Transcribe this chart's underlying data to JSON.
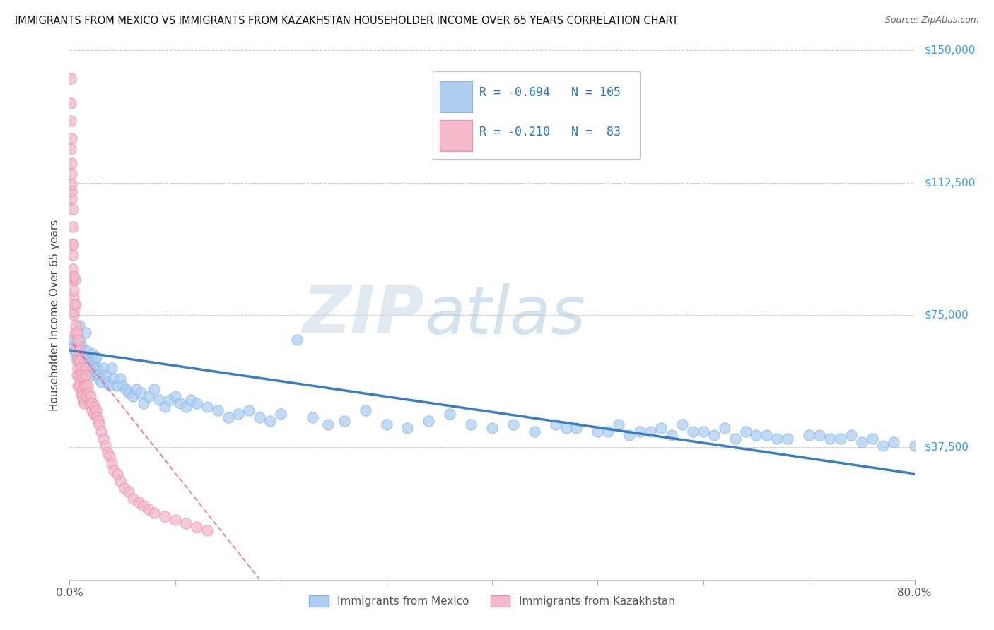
{
  "title": "IMMIGRANTS FROM MEXICO VS IMMIGRANTS FROM KAZAKHSTAN HOUSEHOLDER INCOME OVER 65 YEARS CORRELATION CHART",
  "source": "Source: ZipAtlas.com",
  "ylabel": "Householder Income Over 65 years",
  "yticks": [
    0,
    37500,
    75000,
    112500,
    150000
  ],
  "legend_labels": [
    "Immigrants from Mexico",
    "Immigrants from Kazakhstan"
  ],
  "color_mexico": "#aecef0",
  "color_mexico_edge": "#85b8e8",
  "color_kazakhstan": "#f5b8c8",
  "color_kazakhstan_edge": "#e890a8",
  "trendline_mexico_color": "#3a7fc1",
  "trendline_kazakhstan_color": "#e85080",
  "watermark_zip": "ZIP",
  "watermark_atlas": "atlas",
  "watermark_color_zip": "#c8d8e8",
  "watermark_color_atlas": "#a8c8e8",
  "xlim": [
    0.0,
    0.8
  ],
  "ylim": [
    0,
    150000
  ],
  "background_color": "#ffffff",
  "mexico_x": [
    0.003,
    0.004,
    0.005,
    0.006,
    0.007,
    0.008,
    0.009,
    0.01,
    0.011,
    0.012,
    0.013,
    0.014,
    0.015,
    0.016,
    0.017,
    0.018,
    0.019,
    0.02,
    0.021,
    0.022,
    0.023,
    0.024,
    0.025,
    0.026,
    0.027,
    0.028,
    0.03,
    0.032,
    0.034,
    0.036,
    0.038,
    0.04,
    0.042,
    0.045,
    0.048,
    0.05,
    0.053,
    0.056,
    0.06,
    0.063,
    0.067,
    0.07,
    0.075,
    0.08,
    0.085,
    0.09,
    0.095,
    0.1,
    0.105,
    0.11,
    0.115,
    0.12,
    0.13,
    0.14,
    0.15,
    0.16,
    0.17,
    0.18,
    0.19,
    0.2,
    0.215,
    0.23,
    0.245,
    0.26,
    0.28,
    0.3,
    0.32,
    0.34,
    0.36,
    0.38,
    0.4,
    0.42,
    0.44,
    0.46,
    0.48,
    0.5,
    0.52,
    0.54,
    0.56,
    0.58,
    0.6,
    0.62,
    0.64,
    0.66,
    0.68,
    0.7,
    0.72,
    0.74,
    0.76,
    0.78,
    0.8,
    0.47,
    0.51,
    0.53,
    0.55,
    0.57,
    0.59,
    0.61,
    0.63,
    0.65,
    0.67,
    0.71,
    0.73,
    0.75,
    0.77
  ],
  "mexico_y": [
    68000,
    66000,
    65000,
    64000,
    63000,
    62000,
    72000,
    68000,
    66000,
    64000,
    62000,
    60000,
    70000,
    65000,
    63000,
    61000,
    60000,
    58000,
    62000,
    64000,
    60000,
    62000,
    63000,
    60000,
    58000,
    57000,
    56000,
    60000,
    58000,
    56000,
    55000,
    60000,
    57000,
    55000,
    57000,
    55000,
    54000,
    53000,
    52000,
    54000,
    53000,
    50000,
    52000,
    54000,
    51000,
    49000,
    51000,
    52000,
    50000,
    49000,
    51000,
    50000,
    49000,
    48000,
    46000,
    47000,
    48000,
    46000,
    45000,
    47000,
    68000,
    46000,
    44000,
    45000,
    48000,
    44000,
    43000,
    45000,
    47000,
    44000,
    43000,
    44000,
    42000,
    44000,
    43000,
    42000,
    44000,
    42000,
    43000,
    44000,
    42000,
    43000,
    42000,
    41000,
    40000,
    41000,
    40000,
    41000,
    40000,
    39000,
    38000,
    43000,
    42000,
    41000,
    42000,
    41000,
    42000,
    41000,
    40000,
    41000,
    40000,
    41000,
    40000,
    39000,
    38000
  ],
  "kazakhstan_x": [
    0.001,
    0.001,
    0.002,
    0.002,
    0.002,
    0.003,
    0.003,
    0.003,
    0.004,
    0.004,
    0.005,
    0.005,
    0.005,
    0.006,
    0.006,
    0.007,
    0.007,
    0.007,
    0.008,
    0.008,
    0.008,
    0.009,
    0.009,
    0.01,
    0.01,
    0.011,
    0.011,
    0.012,
    0.012,
    0.013,
    0.013,
    0.014,
    0.014,
    0.015,
    0.015,
    0.016,
    0.016,
    0.017,
    0.018,
    0.019,
    0.02,
    0.021,
    0.022,
    0.023,
    0.024,
    0.025,
    0.026,
    0.027,
    0.028,
    0.03,
    0.032,
    0.034,
    0.036,
    0.038,
    0.04,
    0.042,
    0.045,
    0.048,
    0.052,
    0.056,
    0.06,
    0.065,
    0.07,
    0.075,
    0.08,
    0.09,
    0.1,
    0.11,
    0.12,
    0.13,
    0.001,
    0.001,
    0.002,
    0.002,
    0.003,
    0.003,
    0.004,
    0.004,
    0.002,
    0.003,
    0.003,
    0.004,
    0.005
  ],
  "kazakhstan_y": [
    142000,
    135000,
    125000,
    118000,
    110000,
    105000,
    95000,
    85000,
    80000,
    75000,
    85000,
    78000,
    70000,
    72000,
    65000,
    70000,
    62000,
    58000,
    68000,
    60000,
    55000,
    65000,
    58000,
    62000,
    55000,
    60000,
    53000,
    58000,
    52000,
    57000,
    51000,
    55000,
    50000,
    60000,
    55000,
    58000,
    52000,
    55000,
    53000,
    50000,
    52000,
    48000,
    50000,
    47000,
    49000,
    48000,
    46000,
    45000,
    44000,
    42000,
    40000,
    38000,
    36000,
    35000,
    33000,
    31000,
    30000,
    28000,
    26000,
    25000,
    23000,
    22000,
    21000,
    20000,
    19000,
    18000,
    17000,
    16000,
    15000,
    14000,
    130000,
    122000,
    115000,
    108000,
    95000,
    88000,
    82000,
    76000,
    112000,
    100000,
    92000,
    86000,
    78000
  ]
}
